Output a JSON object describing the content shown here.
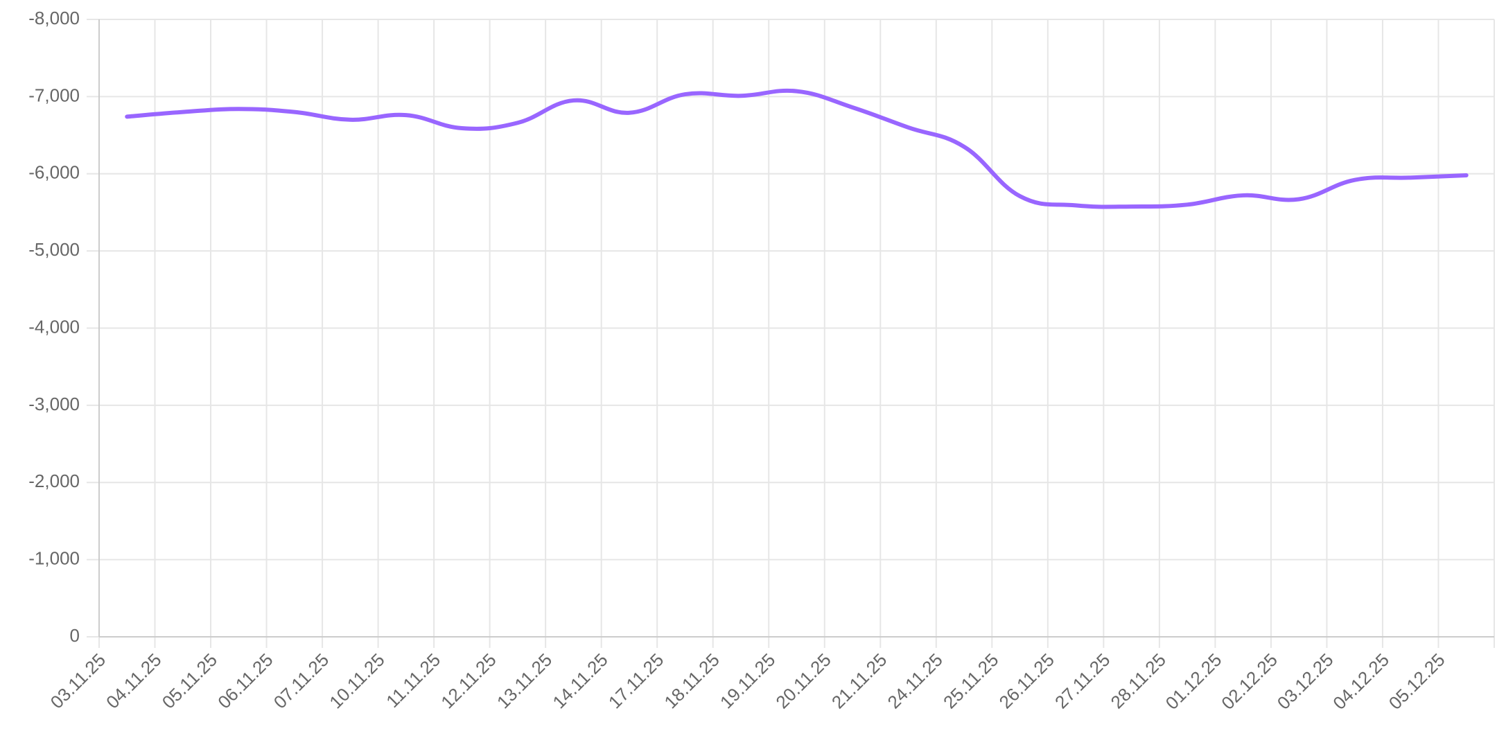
{
  "chart_data": {
    "type": "line",
    "categories": [
      "03.11.25",
      "04.11.25",
      "05.11.25",
      "06.11.25",
      "07.11.25",
      "10.11.25",
      "11.11.25",
      "12.11.25",
      "13.11.25",
      "14.11.25",
      "17.11.25",
      "18.11.25",
      "19.11.25",
      "20.11.25",
      "21.11.25",
      "24.11.25",
      "25.11.25",
      "26.11.25",
      "27.11.25",
      "28.11.25",
      "01.12.25",
      "02.12.25",
      "03.12.25",
      "04.12.25",
      "05.12.25"
    ],
    "series": [
      {
        "color": "#9966ff",
        "values": [
          -6740,
          -6800,
          -6840,
          -6800,
          -6700,
          -6760,
          -6590,
          -6660,
          -6950,
          -6790,
          -7030,
          -7010,
          -7070,
          -6860,
          -6600,
          -6350,
          -5710,
          -5590,
          -5575,
          -5600,
          -5720,
          -5670,
          -5920,
          -5950,
          -5980
        ]
      }
    ],
    "ylim": [
      0,
      -8000
    ],
    "yticks": [
      0,
      {
        "value": -1000,
        "label": "-1,000"
      },
      {
        "value": -2000,
        "label": "-2,000"
      },
      {
        "value": -3000,
        "label": "-3,000"
      },
      {
        "value": -4000,
        "label": "-4,000"
      },
      {
        "value": -5000,
        "label": "-5,000"
      },
      {
        "value": -6000,
        "label": "-6,000"
      },
      {
        "value": -7000,
        "label": "-7,000"
      },
      {
        "value": -8000,
        "label": "-8,000"
      }
    ],
    "grid": true
  }
}
